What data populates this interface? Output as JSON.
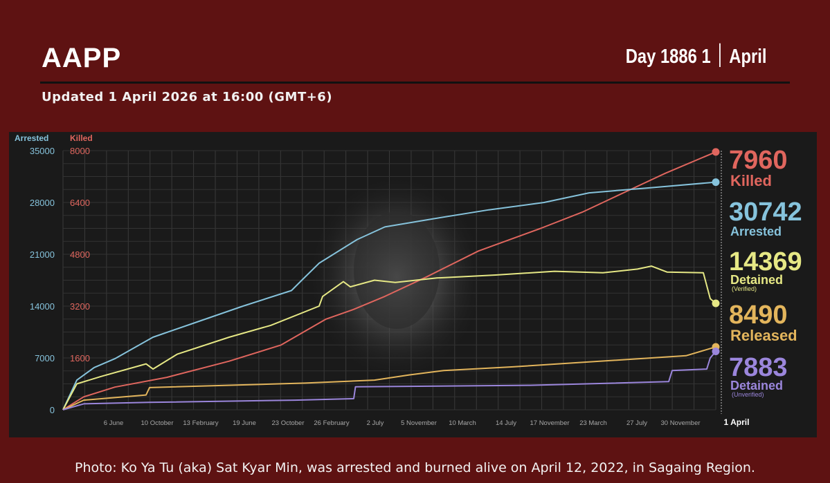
{
  "header": {
    "title": "AAPP",
    "day_label": "Day 1886 ׀ 1 April",
    "updated": "Updated 1 April 2026 at 16:00 (GMT+6)"
  },
  "caption": "Photo: Ko Ya Tu (aka) Sat Kyar Min, was arrested and burned alive on April 12, 2022, in Sagaing Region.",
  "colors": {
    "killed": "#e0665e",
    "arrested": "#86c3dc",
    "detained_verified": "#e6e885",
    "released": "#e3b55c",
    "detained_unverified": "#9b86dc",
    "background": "#5e1212",
    "panel": "#1a1a1a"
  },
  "chart_data": {
    "type": "line",
    "left_axis": {
      "title": "Arrested",
      "ticks": [
        "35000",
        "28000",
        "21000",
        "14000",
        "7000",
        "0"
      ],
      "ylim": [
        0,
        35000
      ]
    },
    "right_axis": {
      "title": "Killed",
      "ticks": [
        "8000",
        "6400",
        "4800",
        "3200",
        "1600"
      ],
      "ylim": [
        0,
        8000
      ]
    },
    "x_ticks": [
      "6 June",
      "10 October",
      "13 February",
      "19 June",
      "23 October",
      "26 February",
      "2 July",
      "5 November",
      "10 March",
      "14 July",
      "17 November",
      "23 March",
      "27 July",
      "30 November",
      "1 April"
    ],
    "x_day_range": [
      0,
      1886
    ],
    "x_tick_days": [
      126,
      252,
      378,
      504,
      630,
      756,
      882,
      1008,
      1134,
      1260,
      1386,
      1512,
      1638,
      1764,
      1886
    ],
    "series": [
      {
        "key": "killed",
        "axis": "killed",
        "value": "7960",
        "label": "Killed",
        "sublabel": "",
        "points": [
          [
            0,
            0
          ],
          [
            60,
            400
          ],
          [
            150,
            700
          ],
          [
            300,
            1000
          ],
          [
            480,
            1500
          ],
          [
            630,
            2000
          ],
          [
            760,
            2800
          ],
          [
            840,
            3100
          ],
          [
            930,
            3500
          ],
          [
            1050,
            4100
          ],
          [
            1200,
            4900
          ],
          [
            1380,
            5600
          ],
          [
            1500,
            6100
          ],
          [
            1620,
            6700
          ],
          [
            1740,
            7300
          ],
          [
            1886,
            7960
          ]
        ]
      },
      {
        "key": "arrested",
        "axis": "arrested",
        "value": "30742",
        "label": "Arrested",
        "sublabel": "",
        "points": [
          [
            0,
            0
          ],
          [
            40,
            4000
          ],
          [
            90,
            5700
          ],
          [
            150,
            6900
          ],
          [
            260,
            9800
          ],
          [
            390,
            11900
          ],
          [
            520,
            14000
          ],
          [
            660,
            16100
          ],
          [
            690,
            17500
          ],
          [
            740,
            19800
          ],
          [
            850,
            23000
          ],
          [
            930,
            24700
          ],
          [
            1070,
            25800
          ],
          [
            1230,
            27000
          ],
          [
            1390,
            28000
          ],
          [
            1520,
            29300
          ],
          [
            1700,
            30000
          ],
          [
            1886,
            30742
          ]
        ]
      },
      {
        "key": "detained_verified",
        "axis": "arrested",
        "value": "14369",
        "label": "Detained",
        "sublabel": "(Verified)",
        "points": [
          [
            0,
            0
          ],
          [
            40,
            3500
          ],
          [
            110,
            4500
          ],
          [
            240,
            6200
          ],
          [
            260,
            5500
          ],
          [
            330,
            7500
          ],
          [
            480,
            9800
          ],
          [
            600,
            11400
          ],
          [
            740,
            14000
          ],
          [
            750,
            15300
          ],
          [
            810,
            17300
          ],
          [
            830,
            16600
          ],
          [
            900,
            17500
          ],
          [
            960,
            17200
          ],
          [
            1080,
            17800
          ],
          [
            1250,
            18200
          ],
          [
            1420,
            18700
          ],
          [
            1560,
            18500
          ],
          [
            1660,
            19000
          ],
          [
            1700,
            19400
          ],
          [
            1745,
            18600
          ],
          [
            1850,
            18500
          ],
          [
            1870,
            15000
          ],
          [
            1886,
            14369
          ]
        ]
      },
      {
        "key": "released",
        "axis": "arrested",
        "value": "8490",
        "label": "Released",
        "sublabel": "",
        "points": [
          [
            0,
            0
          ],
          [
            60,
            1300
          ],
          [
            240,
            2000
          ],
          [
            250,
            3000
          ],
          [
            700,
            3600
          ],
          [
            900,
            4000
          ],
          [
            1000,
            4700
          ],
          [
            1100,
            5300
          ],
          [
            1300,
            5800
          ],
          [
            1500,
            6400
          ],
          [
            1700,
            7000
          ],
          [
            1800,
            7300
          ],
          [
            1886,
            8490
          ]
        ]
      },
      {
        "key": "detained_unverified",
        "axis": "arrested",
        "value": "7883",
        "label": "Detained",
        "sublabel": "(Unverified)",
        "points": [
          [
            0,
            0
          ],
          [
            60,
            800
          ],
          [
            250,
            1000
          ],
          [
            670,
            1300
          ],
          [
            840,
            1500
          ],
          [
            845,
            3100
          ],
          [
            1350,
            3300
          ],
          [
            1750,
            3800
          ],
          [
            1760,
            5300
          ],
          [
            1860,
            5500
          ],
          [
            1870,
            7000
          ],
          [
            1886,
            7883
          ]
        ]
      }
    ]
  }
}
